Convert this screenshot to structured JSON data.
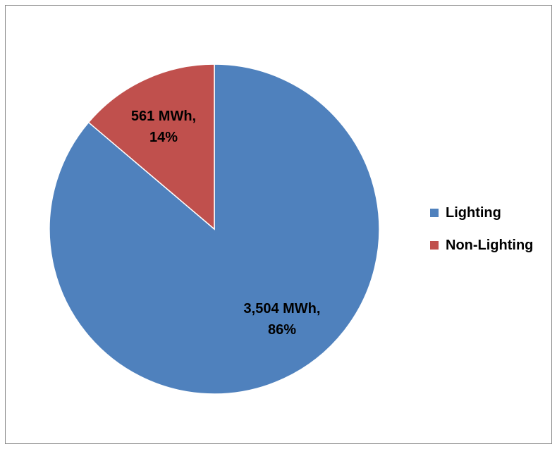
{
  "chart_data": {
    "type": "pie",
    "categories": [
      "Lighting",
      "Non-Lighting"
    ],
    "values": [
      3504,
      561
    ],
    "units": "MWh",
    "percentages": [
      86,
      14
    ],
    "data_labels": [
      {
        "line1": "3,504 MWh,",
        "line2": "86%"
      },
      {
        "line1": "561 MWh,",
        "line2": "14%"
      }
    ],
    "colors": [
      "#4F81BD",
      "#C0504D"
    ],
    "legend": {
      "placement": "right",
      "entries": [
        "Lighting",
        "Non-Lighting"
      ]
    }
  }
}
